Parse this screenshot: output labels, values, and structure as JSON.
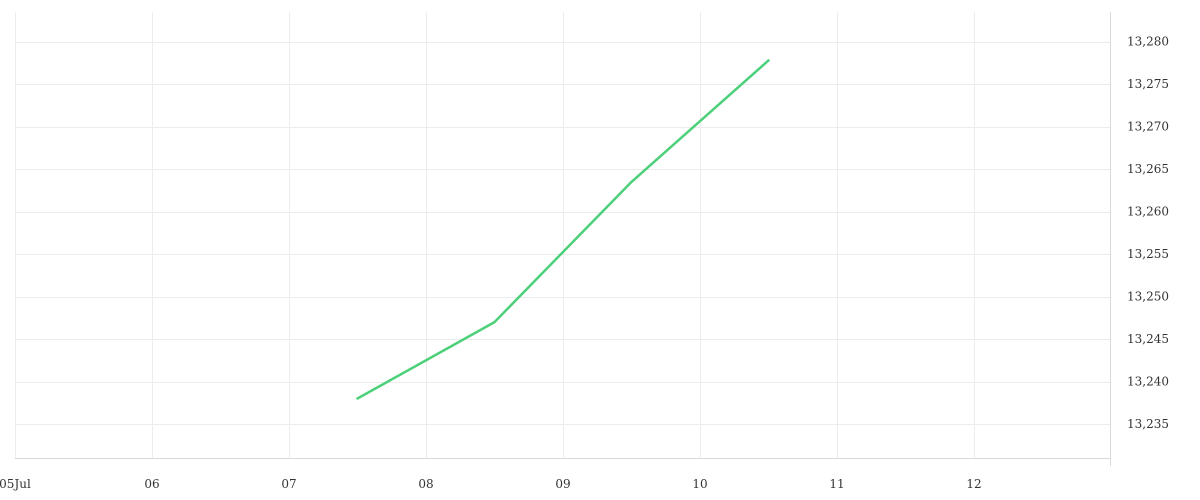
{
  "chart_data": {
    "type": "line",
    "title": "",
    "xlabel": "",
    "ylabel": "",
    "x_ticks": [
      "05Jul",
      "06",
      "07",
      "08",
      "09",
      "10",
      "11",
      "12"
    ],
    "y_ticks": [
      "13,235",
      "13,240",
      "13,245",
      "13,250",
      "13,255",
      "13,260",
      "13,265",
      "13,270",
      "13,275",
      "13,280"
    ],
    "ylim": [
      13231,
      13283.5
    ],
    "xlim": [
      0,
      8
    ],
    "x_positions_note_removed": true,
    "series": [
      {
        "color": "#4cd07a",
        "points": [
          {
            "x": 2.5,
            "y": 13238
          },
          {
            "x": 3.5,
            "y": 13247
          },
          {
            "x": 4.5,
            "y": 13263.5
          },
          {
            "x": 5.5,
            "y": 13277.8
          }
        ]
      }
    ],
    "grid": true,
    "y_axis_position": "right"
  }
}
